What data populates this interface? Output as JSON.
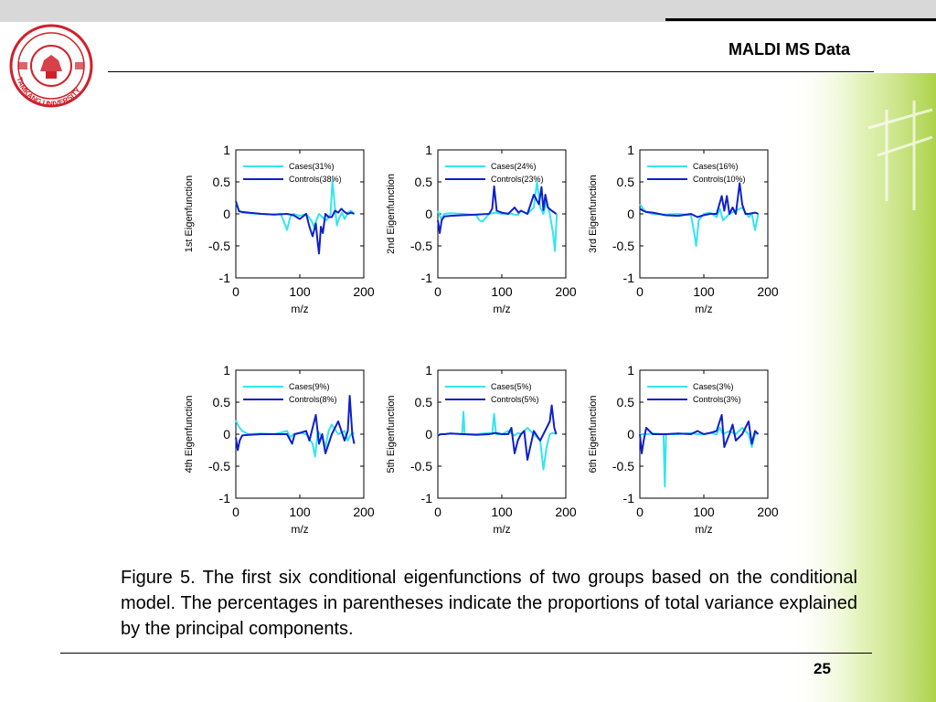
{
  "slide": {
    "title": "MALDI MS Data",
    "caption": "Figure 5. The first six conditional eigenfunctions of two groups based on the conditional model. The percentages in parentheses indicate the proportions of total variance explained by the principal components.",
    "page_number": "25",
    "logo_text": "TAMKANG UNIVERSITY"
  },
  "colors": {
    "cases": "#33e5f0",
    "controls": "#1020c8",
    "logo": "#d0202a",
    "deco": "#b8dc60"
  },
  "chart_data": [
    {
      "type": "line",
      "ylabel": "1st Eigenfunction",
      "xlabel": "m/z",
      "xlim": [
        0,
        200
      ],
      "ylim": [
        -1,
        1
      ],
      "xticks": [
        "0",
        "100",
        "200"
      ],
      "yticks": [
        "1",
        "0.5",
        "0",
        "-0.5",
        "-1"
      ],
      "legend_position": "top-right",
      "series": [
        {
          "name": "Cases(31%)",
          "x": [
            0,
            5,
            10,
            20,
            40,
            60,
            70,
            75,
            80,
            85,
            90,
            100,
            110,
            118,
            122,
            126,
            130,
            135,
            142,
            148,
            151,
            155,
            158,
            162,
            166,
            170,
            175,
            180,
            185
          ],
          "y": [
            0.18,
            0.05,
            0.02,
            0.01,
            0.0,
            -0.01,
            0.0,
            -0.12,
            -0.25,
            -0.05,
            0.0,
            -0.03,
            0.0,
            -0.1,
            -0.2,
            -0.1,
            0.0,
            -0.05,
            -0.1,
            0.0,
            0.52,
            0.08,
            -0.18,
            -0.05,
            0.02,
            -0.08,
            0.02,
            0.05,
            0.0
          ]
        },
        {
          "name": "Controls(38%)",
          "x": [
            0,
            5,
            10,
            20,
            40,
            60,
            80,
            90,
            100,
            110,
            115,
            120,
            125,
            128,
            130,
            133,
            136,
            140,
            145,
            150,
            155,
            160,
            165,
            170,
            175,
            180,
            185
          ],
          "y": [
            0.2,
            0.04,
            0.03,
            0.02,
            0.0,
            -0.01,
            0.0,
            -0.02,
            -0.08,
            0.0,
            -0.2,
            -0.35,
            -0.15,
            -0.45,
            -0.62,
            -0.2,
            -0.3,
            0.0,
            -0.05,
            -0.05,
            0.05,
            0.02,
            0.08,
            0.03,
            0.0,
            0.02,
            0.0
          ]
        }
      ]
    },
    {
      "type": "line",
      "ylabel": "2nd Eigenfunction",
      "xlabel": "m/z",
      "xlim": [
        0,
        200
      ],
      "ylim": [
        -1,
        1
      ],
      "xticks": [
        "0",
        "100",
        "200"
      ],
      "yticks": [
        "1",
        "0.5",
        "0",
        "-0.5",
        "-1"
      ],
      "legend_position": "top-right",
      "series": [
        {
          "name": "Cases(24%)",
          "x": [
            0,
            5,
            10,
            20,
            40,
            60,
            65,
            70,
            80,
            90,
            100,
            110,
            125,
            130,
            140,
            150,
            155,
            160,
            165,
            170,
            175,
            180,
            183,
            186
          ],
          "y": [
            0.05,
            -0.08,
            0.0,
            0.01,
            0.0,
            -0.02,
            -0.1,
            -0.12,
            0.0,
            0.02,
            0.0,
            0.01,
            -0.02,
            0.05,
            0.0,
            0.1,
            0.5,
            0.1,
            0.0,
            0.2,
            0.0,
            -0.3,
            -0.58,
            0.0
          ]
        },
        {
          "name": "Controls(23%)",
          "x": [
            0,
            3,
            6,
            10,
            20,
            40,
            60,
            80,
            85,
            88,
            92,
            100,
            110,
            120,
            126,
            130,
            140,
            150,
            158,
            162,
            165,
            168,
            172,
            178,
            185
          ],
          "y": [
            -0.1,
            -0.3,
            -0.1,
            -0.04,
            -0.03,
            -0.02,
            -0.01,
            0.0,
            0.08,
            0.43,
            0.05,
            0.02,
            0.0,
            0.1,
            0.02,
            0.05,
            0.0,
            0.3,
            0.15,
            0.42,
            0.06,
            0.3,
            0.1,
            0.05,
            0.0
          ]
        }
      ]
    },
    {
      "type": "line",
      "ylabel": "3rd Eigenfunction",
      "xlabel": "m/z",
      "xlim": [
        0,
        200
      ],
      "ylim": [
        -1,
        1
      ],
      "xticks": [
        "0",
        "100",
        "200"
      ],
      "yticks": [
        "1",
        "0.5",
        "0",
        "-0.5",
        "-1"
      ],
      "legend_position": "top-right",
      "series": [
        {
          "name": "Cases(16%)",
          "x": [
            0,
            5,
            10,
            20,
            40,
            60,
            80,
            85,
            88,
            92,
            100,
            110,
            120,
            125,
            130,
            140,
            150,
            160,
            170,
            175,
            180,
            185
          ],
          "y": [
            0.15,
            0.08,
            0.03,
            0.0,
            -0.01,
            0.0,
            -0.02,
            -0.3,
            -0.5,
            -0.1,
            0.0,
            0.02,
            -0.05,
            0.08,
            -0.1,
            0.0,
            0.05,
            0.1,
            -0.05,
            0.0,
            -0.25,
            0.0
          ]
        },
        {
          "name": "Controls(10%)",
          "x": [
            0,
            5,
            10,
            20,
            40,
            60,
            80,
            90,
            100,
            110,
            120,
            128,
            132,
            136,
            140,
            145,
            150,
            156,
            160,
            165,
            170,
            180,
            185
          ],
          "y": [
            0.08,
            0.05,
            0.03,
            0.02,
            -0.02,
            -0.03,
            0.0,
            -0.05,
            -0.02,
            0.0,
            0.0,
            0.28,
            0.05,
            0.28,
            0.0,
            0.1,
            0.0,
            0.48,
            0.15,
            0.0,
            0.0,
            0.02,
            0.0
          ]
        }
      ]
    },
    {
      "type": "line",
      "ylabel": "4th Eigenfunction",
      "xlabel": "m/z",
      "xlim": [
        0,
        200
      ],
      "ylim": [
        -1,
        1
      ],
      "xticks": [
        "0",
        "100",
        "200"
      ],
      "yticks": [
        "1",
        "0.5",
        "0",
        "-0.5",
        "-1"
      ],
      "legend_position": "top-right",
      "series": [
        {
          "name": "Cases(9%)",
          "x": [
            0,
            3,
            6,
            10,
            20,
            40,
            60,
            80,
            85,
            90,
            100,
            110,
            120,
            124,
            128,
            135,
            140,
            145,
            150,
            160,
            170,
            175,
            180,
            185
          ],
          "y": [
            0.22,
            0.15,
            0.1,
            0.05,
            0.0,
            0.01,
            0.0,
            0.05,
            -0.05,
            0.0,
            0.02,
            0.0,
            -0.15,
            -0.35,
            0.05,
            -0.05,
            -0.2,
            0.05,
            0.15,
            0.0,
            0.05,
            -0.1,
            0.0,
            0.02
          ]
        },
        {
          "name": "Controls(8%)",
          "x": [
            0,
            3,
            6,
            10,
            20,
            40,
            60,
            80,
            88,
            92,
            100,
            110,
            115,
            120,
            125,
            130,
            135,
            140,
            150,
            160,
            170,
            175,
            178,
            182,
            185
          ],
          "y": [
            -0.05,
            -0.25,
            -0.1,
            -0.02,
            -0.01,
            0.0,
            0.0,
            0.0,
            -0.15,
            0.0,
            0.02,
            0.05,
            -0.1,
            0.1,
            0.3,
            -0.15,
            0.0,
            -0.3,
            0.0,
            0.2,
            -0.1,
            0.05,
            0.6,
            0.0,
            -0.15
          ]
        }
      ]
    },
    {
      "type": "line",
      "ylabel": "5th Eigenfunction",
      "xlabel": "m/z",
      "xlim": [
        0,
        200
      ],
      "ylim": [
        -1,
        1
      ],
      "xticks": [
        "0",
        "100",
        "200"
      ],
      "yticks": [
        "1",
        "0.5",
        "0",
        "-0.5",
        "-1"
      ],
      "legend_position": "top-right",
      "series": [
        {
          "name": "Cases(5%)",
          "x": [
            0,
            10,
            20,
            38,
            40,
            42,
            60,
            80,
            85,
            88,
            91,
            100,
            110,
            120,
            125,
            130,
            140,
            150,
            160,
            165,
            170,
            175,
            180,
            185
          ],
          "y": [
            0.0,
            0.0,
            0.01,
            0.0,
            0.35,
            0.0,
            0.0,
            0.02,
            0.0,
            0.32,
            0.0,
            0.0,
            0.05,
            -0.02,
            0.02,
            0.0,
            0.1,
            0.0,
            -0.1,
            -0.55,
            -0.2,
            0.0,
            0.02,
            0.0
          ]
        },
        {
          "name": "Controls(5%)",
          "x": [
            0,
            5,
            10,
            20,
            40,
            60,
            80,
            90,
            100,
            110,
            115,
            120,
            125,
            130,
            135,
            140,
            150,
            160,
            170,
            175,
            178,
            182,
            185
          ],
          "y": [
            -0.02,
            0.0,
            0.0,
            0.01,
            0.0,
            -0.01,
            0.0,
            0.02,
            0.0,
            0.0,
            0.1,
            -0.3,
            -0.1,
            0.0,
            0.05,
            -0.4,
            0.05,
            -0.1,
            0.1,
            0.2,
            0.45,
            0.1,
            0.0
          ]
        }
      ]
    },
    {
      "type": "line",
      "ylabel": "6th Eigenfunction",
      "xlabel": "m/z",
      "xlim": [
        0,
        200
      ],
      "ylim": [
        -1,
        1
      ],
      "xticks": [
        "0",
        "100",
        "200"
      ],
      "yticks": [
        "1",
        "0.5",
        "0",
        "-0.5",
        "-1"
      ],
      "legend_position": "top-right",
      "series": [
        {
          "name": "Cases(3%)",
          "x": [
            0,
            10,
            20,
            37,
            39,
            41,
            60,
            80,
            90,
            100,
            110,
            120,
            125,
            130,
            140,
            150,
            160,
            170,
            175,
            180,
            185
          ],
          "y": [
            0.0,
            0.0,
            0.01,
            0.0,
            -0.82,
            0.0,
            0.0,
            0.02,
            0.0,
            0.0,
            0.02,
            0.0,
            0.1,
            0.0,
            0.05,
            0.0,
            0.1,
            0.0,
            -0.2,
            0.0,
            0.02
          ]
        },
        {
          "name": "Controls(3%)",
          "x": [
            0,
            3,
            6,
            10,
            20,
            40,
            60,
            80,
            90,
            100,
            110,
            120,
            128,
            132,
            140,
            145,
            150,
            160,
            170,
            175,
            180,
            185
          ],
          "y": [
            0.0,
            -0.3,
            -0.1,
            0.1,
            0.0,
            0.0,
            0.01,
            0.0,
            0.05,
            0.0,
            0.02,
            0.05,
            0.3,
            -0.2,
            0.0,
            0.15,
            -0.1,
            0.0,
            0.2,
            -0.15,
            0.05,
            0.0
          ]
        }
      ]
    }
  ]
}
